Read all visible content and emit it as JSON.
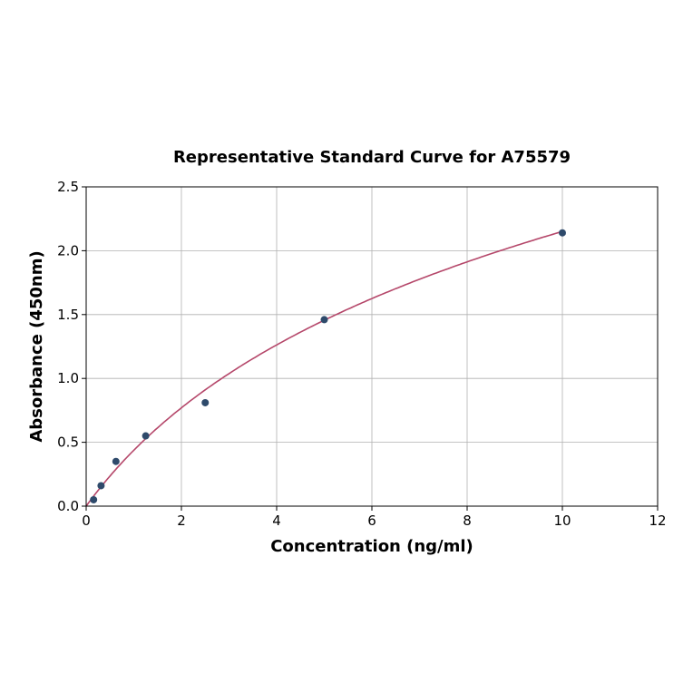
{
  "chart_data": {
    "type": "scatter",
    "title": "Representative Standard Curve for A75579",
    "xlabel": "Concentration (ng/ml)",
    "ylabel": "Absorbance (450nm)",
    "xlim": [
      0,
      12
    ],
    "ylim": [
      0,
      2.5
    ],
    "xticks": [
      "0",
      "2",
      "4",
      "6",
      "8",
      "10",
      "12"
    ],
    "yticks": [
      "0.0",
      "0.5",
      "1.0",
      "1.5",
      "2.0",
      "2.5"
    ],
    "grid": true,
    "points": {
      "x": [
        0.156,
        0.3125,
        0.625,
        1.25,
        2.5,
        5,
        10
      ],
      "y": [
        0.05,
        0.16,
        0.35,
        0.55,
        0.81,
        1.46,
        2.14
      ]
    },
    "fit_curve": {
      "x": [
        0,
        0.5,
        1,
        2,
        3,
        4,
        5,
        6,
        7,
        8,
        9,
        10
      ],
      "y": [
        0,
        0.24,
        0.44,
        0.77,
        1.03,
        1.26,
        1.46,
        1.63,
        1.78,
        1.91,
        2.04,
        2.15
      ]
    },
    "colors": {
      "points": "#2e4a6b",
      "curve": "#b5476a",
      "grid": "#b0b0b0"
    }
  }
}
